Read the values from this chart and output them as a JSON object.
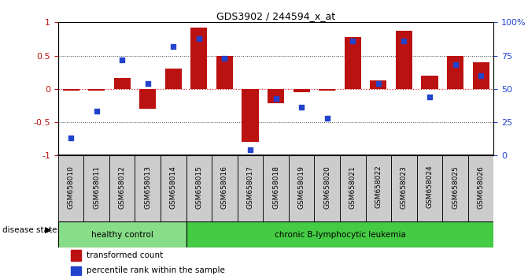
{
  "title": "GDS3902 / 244594_x_at",
  "samples": [
    "GSM658010",
    "GSM658011",
    "GSM658012",
    "GSM658013",
    "GSM658014",
    "GSM658015",
    "GSM658016",
    "GSM658017",
    "GSM658018",
    "GSM658019",
    "GSM658020",
    "GSM658021",
    "GSM658022",
    "GSM658023",
    "GSM658024",
    "GSM658025",
    "GSM658026"
  ],
  "bar_values": [
    -0.03,
    -0.03,
    0.16,
    -0.3,
    0.3,
    0.92,
    0.5,
    -0.8,
    -0.22,
    -0.05,
    -0.03,
    0.78,
    0.13,
    0.87,
    0.2,
    0.5,
    0.4
  ],
  "percentile_values": [
    13,
    33,
    72,
    54,
    82,
    88,
    73,
    4,
    43,
    36,
    28,
    86,
    54,
    86,
    44,
    68,
    60
  ],
  "bar_color": "#bb1111",
  "dot_color": "#2244cc",
  "healthy_count": 5,
  "group1_label": "healthy control",
  "group2_label": "chronic B-lymphocytic leukemia",
  "legend_bar": "transformed count",
  "legend_dot": "percentile rank within the sample",
  "disease_state_label": "disease state",
  "ylim_left": [
    -1,
    1
  ],
  "ylim_right": [
    0,
    100
  ],
  "yticks_left": [
    -1,
    -0.5,
    0,
    0.5,
    1
  ],
  "ytick_labels_left": [
    "-1",
    "-0.5",
    "0",
    "0.5",
    "1"
  ],
  "yticks_right": [
    0,
    25,
    50,
    75,
    100
  ],
  "ytick_labels_right": [
    "0",
    "25",
    "50",
    "75",
    "100%"
  ],
  "bg_color": "#ffffff",
  "healthy_color": "#aaddaa",
  "leukemia_color": "#55cc55",
  "xtick_bg": "#cccccc",
  "zero_line_color": "#dd2222",
  "dotted_line_color": "#444444",
  "bar_color_red": "#cc1111",
  "dot_color_blue": "#2244bb"
}
